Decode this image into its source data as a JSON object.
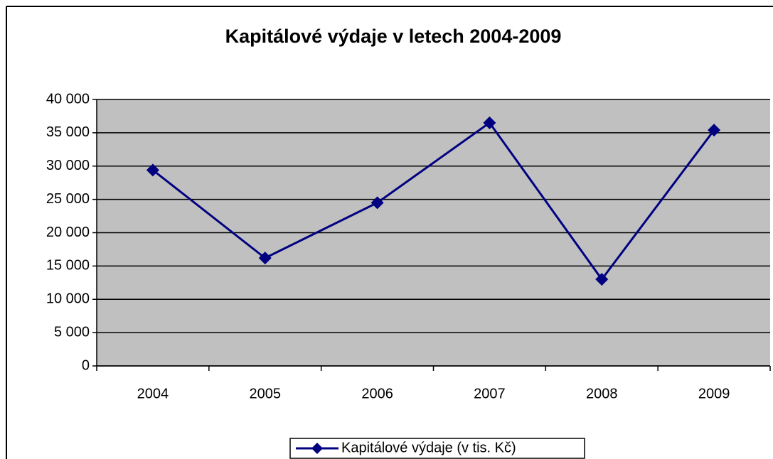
{
  "chart_data": {
    "type": "line",
    "title": "Kapitálové výdaje v letech 2004-2009",
    "categories": [
      "2004",
      "2005",
      "2006",
      "2007",
      "2008",
      "2009"
    ],
    "series": [
      {
        "name": "Kapitálové výdaje (v tis. Kč)",
        "color": "#000080",
        "values": [
          29400,
          16200,
          24500,
          36500,
          13000,
          35400
        ]
      }
    ],
    "ylim": [
      0,
      40000
    ],
    "yticks": [
      0,
      {
        "value": 5000,
        "label": "5 000"
      },
      {
        "value": 10000,
        "label": "10 000"
      },
      {
        "value": 15000,
        "label": "15 000"
      },
      {
        "value": 20000,
        "label": "20 000"
      },
      {
        "value": 25000,
        "label": "25 000"
      },
      {
        "value": 30000,
        "label": "30 000"
      },
      {
        "value": 35000,
        "label": "35 000"
      },
      {
        "value": 40000,
        "label": "40 000"
      }
    ],
    "grid": true,
    "legend": "bottom"
  }
}
